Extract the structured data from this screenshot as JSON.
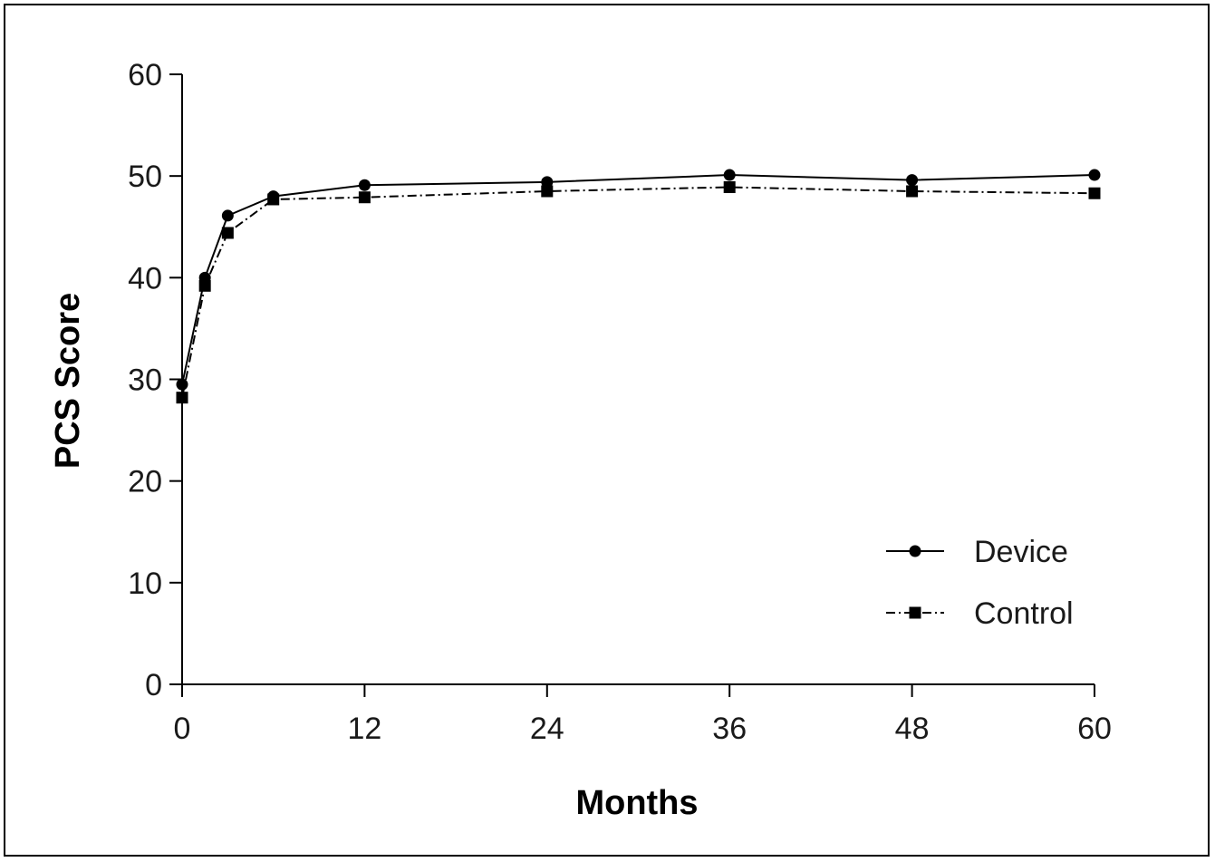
{
  "chart_data": {
    "type": "line",
    "title": "",
    "xlabel": "Months",
    "ylabel": "PCS Score",
    "xlim": [
      0,
      60
    ],
    "ylim": [
      0,
      60
    ],
    "x_ticks": [
      0,
      12,
      24,
      36,
      48,
      60
    ],
    "y_ticks": [
      0,
      10,
      20,
      30,
      40,
      50,
      60
    ],
    "grid": false,
    "legend_position": "bottom-right",
    "series": [
      {
        "name": "Device",
        "line_style": "solid",
        "marker": "circle",
        "color": "#000000",
        "x": [
          0,
          1.5,
          3,
          6,
          12,
          24,
          36,
          48,
          60
        ],
        "values": [
          29.5,
          40.0,
          46.1,
          48.0,
          49.1,
          49.4,
          50.1,
          49.6,
          50.1
        ]
      },
      {
        "name": "Control",
        "line_style": "dash-dot",
        "marker": "square",
        "color": "#000000",
        "x": [
          0,
          1.5,
          3,
          6,
          12,
          24,
          36,
          48,
          60
        ],
        "values": [
          28.2,
          39.2,
          44.4,
          47.7,
          47.9,
          48.5,
          48.9,
          48.5,
          48.3
        ]
      }
    ]
  }
}
